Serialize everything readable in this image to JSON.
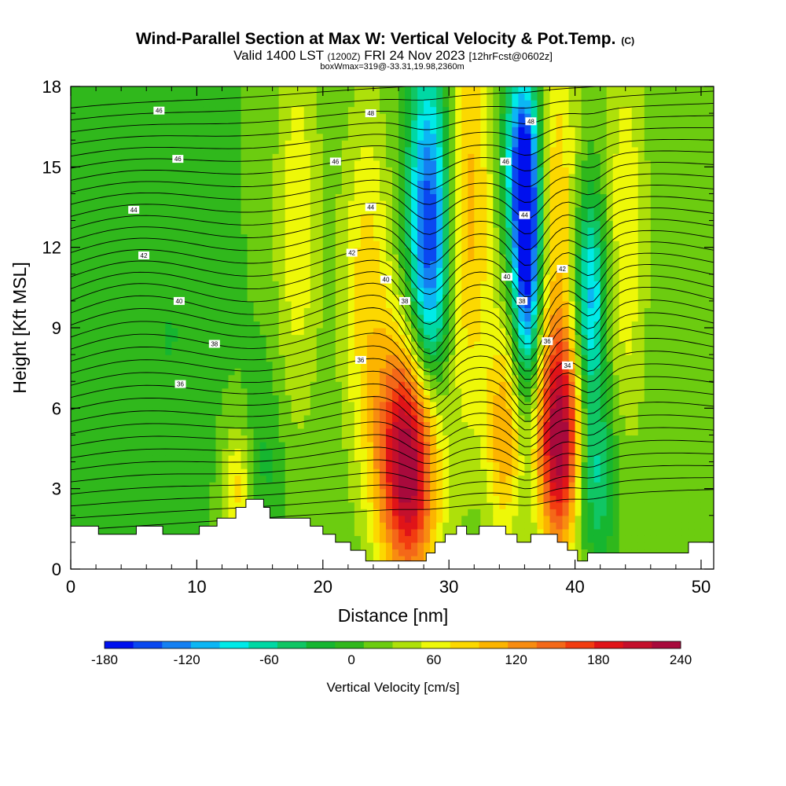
{
  "chart_data": {
    "type": "heatmap",
    "title": "Wind-Parallel Section at Max W: Vertical Velocity & Pot.Temp.",
    "title_mark": "(C)",
    "subtitle_main": "Valid 1400 LST",
    "subtitle_utc": "(1200Z)",
    "subtitle_date": "FRI 24 Nov 2023",
    "subtitle_fcst": "[12hrFcst@0602z]",
    "subtitle_box": "boxWmax=319@-33.31,19.98,2360m",
    "xlabel": "Distance [nm]",
    "ylabel": "Height [Kft MSL]",
    "xlim": [
      0,
      51
    ],
    "ylim": [
      0,
      18
    ],
    "x_ticks": [
      0,
      10,
      20,
      30,
      40,
      50
    ],
    "y_ticks": [
      0,
      3,
      6,
      9,
      12,
      15,
      18
    ],
    "colorbar": {
      "label": "Vertical Velocity [cm/s]",
      "min": -180,
      "max": 240,
      "step": 20,
      "tick_labels": [
        "-180",
        "-120",
        "-60",
        "0",
        "60",
        "120",
        "180",
        "240"
      ],
      "colors": [
        "#0010ee",
        "#0a48f0",
        "#1480f2",
        "#0cb6f4",
        "#00eae8",
        "#00d8a4",
        "#10c664",
        "#16b630",
        "#30b81c",
        "#6ccc10",
        "#aee00a",
        "#eef808",
        "#fcd800",
        "#fcb400",
        "#f88c10",
        "#f46818",
        "#f23c10",
        "#e01418",
        "#c4102c",
        "#a80a3c"
      ]
    },
    "velocity_features": [
      {
        "x": 26.8,
        "z": 4.0,
        "sx": 1.7,
        "sz": 3.2,
        "w": 230
      },
      {
        "x": 38.8,
        "z": 4.8,
        "sx": 1.3,
        "sz": 3.0,
        "w": 215
      },
      {
        "x": 34.4,
        "z": 5.0,
        "sx": 1.0,
        "sz": 2.8,
        "w": 95
      },
      {
        "x": 23.5,
        "z": 10.5,
        "sx": 1.5,
        "sz": 5.0,
        "w": 70
      },
      {
        "x": 18.0,
        "z": 13.0,
        "sx": 1.3,
        "sz": 5.5,
        "w": 55
      },
      {
        "x": 31.5,
        "z": 13.5,
        "sx": 1.5,
        "sz": 6.0,
        "w": 90
      },
      {
        "x": 38.5,
        "z": 14.0,
        "sx": 1.3,
        "sz": 5.0,
        "w": 75
      },
      {
        "x": 44.0,
        "z": 12.5,
        "sx": 1.3,
        "sz": 6.0,
        "w": 55
      },
      {
        "x": 13.2,
        "z": 3.0,
        "sx": 0.8,
        "sz": 1.6,
        "w": 65
      },
      {
        "x": 28.5,
        "z": 12.5,
        "sx": 1.2,
        "sz": 4.5,
        "w": -170
      },
      {
        "x": 36.2,
        "z": 11.5,
        "sx": 0.8,
        "sz": 3.2,
        "w": -180
      },
      {
        "x": 35.8,
        "z": 15.5,
        "sx": 1.0,
        "sz": 2.5,
        "w": -130
      },
      {
        "x": 41.2,
        "z": 10.0,
        "sx": 0.9,
        "sz": 2.8,
        "w": -120
      },
      {
        "x": 41.5,
        "z": 3.5,
        "sx": 1.2,
        "sz": 2.2,
        "w": -75
      },
      {
        "x": 15.5,
        "z": 4.0,
        "sx": 1.0,
        "sz": 2.5,
        "w": -25
      },
      {
        "x": 8.0,
        "z": 9.0,
        "sx": 2.0,
        "sz": 5.0,
        "w": -20
      },
      {
        "x": 2.0,
        "z": 3.0,
        "sx": 3.5,
        "sz": 2.5,
        "w": -15
      }
    ],
    "theta_contours": {
      "base_levels": [
        32,
        33,
        34,
        35,
        36,
        37,
        38,
        39,
        40,
        41,
        42,
        43,
        44,
        45,
        46,
        47,
        48,
        49
      ],
      "labeled": [
        {
          "text": "46",
          "x": 7.0,
          "z": 17.1
        },
        {
          "text": "48",
          "x": 23.8,
          "z": 17.0
        },
        {
          "text": "48",
          "x": 36.5,
          "z": 16.7
        },
        {
          "text": "46",
          "x": 8.5,
          "z": 15.3
        },
        {
          "text": "46",
          "x": 21.0,
          "z": 15.2
        },
        {
          "text": "46",
          "x": 34.5,
          "z": 15.2
        },
        {
          "text": "44",
          "x": 5.0,
          "z": 13.4
        },
        {
          "text": "44",
          "x": 23.8,
          "z": 13.5
        },
        {
          "text": "44",
          "x": 36.0,
          "z": 13.2
        },
        {
          "text": "42",
          "x": 5.8,
          "z": 11.7
        },
        {
          "text": "42",
          "x": 22.3,
          "z": 11.8
        },
        {
          "text": "42",
          "x": 39.0,
          "z": 11.2
        },
        {
          "text": "40",
          "x": 8.6,
          "z": 10.0
        },
        {
          "text": "40",
          "x": 25.0,
          "z": 10.8
        },
        {
          "text": "40",
          "x": 34.6,
          "z": 10.9
        },
        {
          "text": "38",
          "x": 11.4,
          "z": 8.4
        },
        {
          "text": "38",
          "x": 26.5,
          "z": 10.0
        },
        {
          "text": "38",
          "x": 35.8,
          "z": 10.0
        },
        {
          "text": "36",
          "x": 8.7,
          "z": 6.9
        },
        {
          "text": "36",
          "x": 23.0,
          "z": 7.8
        },
        {
          "text": "36",
          "x": 37.8,
          "z": 8.5
        },
        {
          "text": "34",
          "x": 39.4,
          "z": 7.6
        }
      ]
    },
    "terrain_kft": [
      [
        0,
        1.6
      ],
      [
        2.2,
        1.6
      ],
      [
        2.2,
        1.3
      ],
      [
        5.2,
        1.3
      ],
      [
        5.2,
        1.6
      ],
      [
        7.3,
        1.6
      ],
      [
        7.3,
        1.3
      ],
      [
        10.2,
        1.3
      ],
      [
        10.2,
        1.6
      ],
      [
        11.6,
        1.6
      ],
      [
        11.6,
        1.9
      ],
      [
        13.1,
        1.9
      ],
      [
        13.1,
        2.3
      ],
      [
        13.9,
        2.3
      ],
      [
        13.9,
        2.6
      ],
      [
        15.3,
        2.6
      ],
      [
        15.3,
        2.3
      ],
      [
        15.8,
        2.3
      ],
      [
        15.8,
        1.9
      ],
      [
        19.0,
        1.9
      ],
      [
        19.0,
        1.6
      ],
      [
        20.0,
        1.6
      ],
      [
        20.0,
        1.3
      ],
      [
        21.0,
        1.3
      ],
      [
        21.0,
        1.0
      ],
      [
        22.2,
        1.0
      ],
      [
        22.2,
        0.7
      ],
      [
        23.4,
        0.7
      ],
      [
        23.4,
        0.3
      ],
      [
        28.2,
        0.3
      ],
      [
        28.2,
        0.6
      ],
      [
        28.9,
        0.6
      ],
      [
        28.9,
        1.0
      ],
      [
        29.7,
        1.0
      ],
      [
        29.7,
        1.3
      ],
      [
        30.6,
        1.3
      ],
      [
        30.6,
        1.6
      ],
      [
        31.4,
        1.6
      ],
      [
        31.4,
        1.3
      ],
      [
        32.4,
        1.3
      ],
      [
        32.4,
        1.6
      ],
      [
        34.5,
        1.6
      ],
      [
        34.5,
        1.3
      ],
      [
        35.4,
        1.3
      ],
      [
        35.4,
        1.0
      ],
      [
        36.5,
        1.0
      ],
      [
        36.5,
        1.3
      ],
      [
        38.6,
        1.3
      ],
      [
        38.6,
        1.0
      ],
      [
        39.4,
        1.0
      ],
      [
        39.4,
        0.7
      ],
      [
        40.2,
        0.7
      ],
      [
        40.2,
        0.3
      ],
      [
        41.0,
        0.3
      ],
      [
        41.0,
        0.6
      ],
      [
        49.0,
        0.6
      ],
      [
        49.0,
        1.0
      ],
      [
        51,
        1.0
      ]
    ]
  }
}
